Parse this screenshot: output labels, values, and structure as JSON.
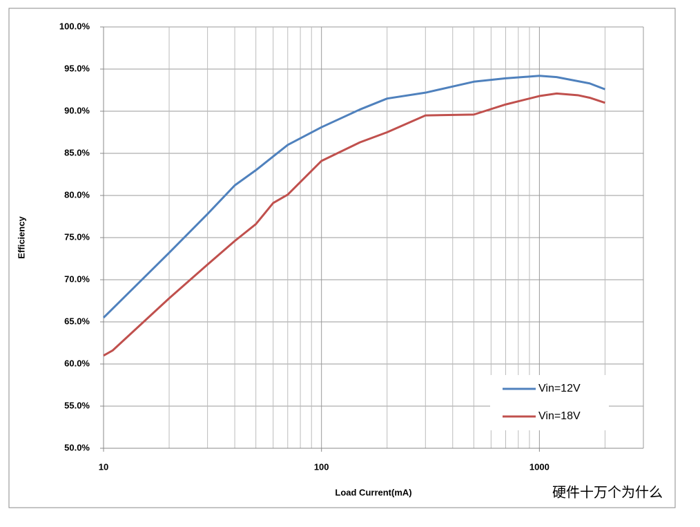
{
  "chart_data": {
    "type": "line",
    "xlabel": "Load Current(mA)",
    "ylabel": "Efficiency",
    "xscale": "log",
    "xlim": [
      10,
      3000
    ],
    "xticks": [
      10,
      100,
      1000
    ],
    "minor_xticks": [
      20,
      30,
      40,
      50,
      60,
      70,
      80,
      90,
      200,
      300,
      400,
      500,
      600,
      700,
      800,
      900,
      2000
    ],
    "ylim": [
      50,
      100
    ],
    "yticks": [
      {
        "value": 50,
        "label": "50.0%"
      },
      {
        "value": 55,
        "label": "55.0%"
      },
      {
        "value": 60,
        "label": "60.0%"
      },
      {
        "value": 65,
        "label": "65.0%"
      },
      {
        "value": 70,
        "label": "70.0%"
      },
      {
        "value": 75,
        "label": "75.0%"
      },
      {
        "value": 80,
        "label": "80.0%"
      },
      {
        "value": 85,
        "label": "85.0%"
      },
      {
        "value": 90,
        "label": "90.0%"
      },
      {
        "value": 95,
        "label": "95.0%"
      },
      {
        "value": 100,
        "label": "100.0%"
      }
    ],
    "grid": true,
    "legend": "lower right",
    "series": [
      {
        "name": "Vin=12V",
        "color": "#4f81bd",
        "x": [
          10,
          20,
          30,
          40,
          50,
          70,
          100,
          150,
          200,
          300,
          500,
          700,
          1000,
          1200,
          1700,
          2000
        ],
        "values": [
          65.5,
          73.2,
          77.8,
          81.2,
          83,
          86,
          88.1,
          90.2,
          91.5,
          92.2,
          93.5,
          93.9,
          94.2,
          94.05,
          93.3,
          92.6
        ]
      },
      {
        "name": "Vin=18V",
        "color": "#c0504d",
        "x": [
          10,
          11,
          20,
          30,
          40,
          50,
          60,
          70,
          100,
          150,
          200,
          300,
          500,
          700,
          1000,
          1200,
          1500,
          1700,
          2000
        ],
        "values": [
          61.0,
          61.6,
          67.8,
          71.8,
          74.6,
          76.6,
          79.1,
          80.1,
          84.1,
          86.3,
          87.5,
          89.5,
          89.6,
          90.8,
          91.8,
          92.1,
          91.9,
          91.6,
          91.0
        ]
      }
    ],
    "watermark": "硬件十万个为什么"
  }
}
